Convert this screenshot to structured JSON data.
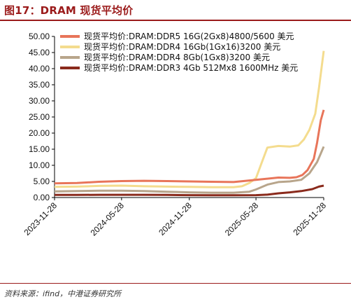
{
  "title": "图17：DRAM 现货平均价",
  "source": "资料来源：ifind，中港证券研究所",
  "chart_data": {
    "type": "line",
    "title": "",
    "xlabel": "",
    "ylabel": "",
    "ylim": [
      0,
      50
    ],
    "yticks": [
      "0.00",
      "5.00",
      "10.00",
      "15.00",
      "20.00",
      "25.00",
      "30.00",
      "35.00",
      "40.00",
      "45.00",
      "50.00"
    ],
    "xticks": [
      "2023-11-28",
      "2024-05-28",
      "2024-11-28",
      "2025-05-28",
      "2025-11-28"
    ],
    "grid": false,
    "legend_position": "top-right",
    "series": [
      {
        "name": "现货平均价:DRAM:DDR5 16G(2Gx8)4800/5600 美元",
        "color": "#e8755a",
        "x": [
          "2023-11-28",
          "2024-01-28",
          "2024-03-28",
          "2024-05-28",
          "2024-07-28",
          "2024-09-28",
          "2024-11-28",
          "2025-01-28",
          "2025-03-28",
          "2025-05-28",
          "2025-07-28",
          "2025-08-28",
          "2025-09-15",
          "2025-10-01",
          "2025-10-15",
          "2025-11-01",
          "2025-11-10",
          "2025-11-20",
          "2025-11-28"
        ],
        "values": [
          4.4,
          4.5,
          4.9,
          5.1,
          5.2,
          5.1,
          5.0,
          4.9,
          4.8,
          5.5,
          6.2,
          6.1,
          6.3,
          7.0,
          8.5,
          12.0,
          17.0,
          24.0,
          27.2
        ]
      },
      {
        "name": "现货平均价:DRAM:DDR4 16Gb(1Gx16)3200 美元",
        "color": "#f4dc8e",
        "x": [
          "2023-11-28",
          "2024-01-28",
          "2024-03-28",
          "2024-05-28",
          "2024-07-28",
          "2024-09-28",
          "2024-11-28",
          "2025-01-28",
          "2025-03-28",
          "2025-04-20",
          "2025-05-10",
          "2025-05-28",
          "2025-06-10",
          "2025-06-28",
          "2025-07-28",
          "2025-08-28",
          "2025-09-20",
          "2025-10-05",
          "2025-10-20",
          "2025-11-05",
          "2025-11-15",
          "2025-11-28"
        ],
        "values": [
          3.3,
          3.4,
          3.6,
          3.7,
          3.5,
          3.4,
          3.3,
          3.2,
          3.2,
          3.5,
          4.5,
          6.0,
          10.0,
          15.5,
          16.0,
          15.8,
          16.2,
          18.0,
          21.0,
          26.0,
          34.0,
          45.5
        ]
      },
      {
        "name": "现货平均价:DRAM:DDR4 8Gb(1Gx8)3200 美元",
        "color": "#b8a58b",
        "x": [
          "2023-11-28",
          "2024-01-28",
          "2024-03-28",
          "2024-05-28",
          "2024-07-28",
          "2024-09-28",
          "2024-11-28",
          "2025-01-28",
          "2025-03-28",
          "2025-05-10",
          "2025-05-28",
          "2025-06-28",
          "2025-07-28",
          "2025-08-28",
          "2025-09-28",
          "2025-10-20",
          "2025-11-10",
          "2025-11-28"
        ],
        "values": [
          1.9,
          2.0,
          2.1,
          2.1,
          2.0,
          1.8,
          1.6,
          1.5,
          1.5,
          1.8,
          2.5,
          4.0,
          4.8,
          5.0,
          5.5,
          7.5,
          11.0,
          15.8
        ]
      },
      {
        "name": "现货平均价:DRAM:DDR3 4Gb 512Mx8 1600MHz 美元",
        "color": "#8a2a1c",
        "x": [
          "2023-11-28",
          "2024-01-28",
          "2024-03-28",
          "2024-05-28",
          "2024-07-28",
          "2024-09-28",
          "2024-11-28",
          "2025-01-28",
          "2025-03-28",
          "2025-05-28",
          "2025-06-28",
          "2025-07-28",
          "2025-08-28",
          "2025-09-28",
          "2025-10-28",
          "2025-11-15",
          "2025-11-28"
        ],
        "values": [
          0.8,
          0.8,
          0.85,
          0.85,
          0.85,
          0.8,
          0.75,
          0.7,
          0.7,
          0.75,
          0.9,
          1.3,
          1.6,
          2.0,
          2.6,
          3.4,
          3.7
        ]
      }
    ]
  }
}
